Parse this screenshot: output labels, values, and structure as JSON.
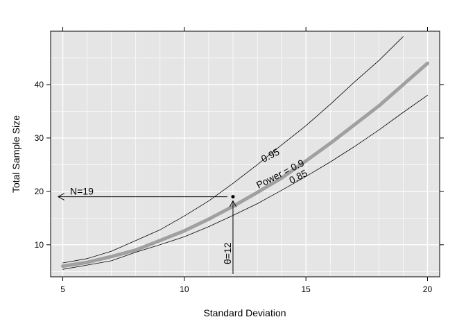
{
  "chart_data": {
    "type": "line",
    "xlabel": "Standard Deviation",
    "ylabel": "Total Sample Size",
    "xlim": [
      4.5,
      20.5
    ],
    "ylim": [
      4,
      50
    ],
    "x_ticks": [
      5,
      10,
      15,
      20
    ],
    "y_ticks": [
      10,
      20,
      30,
      40
    ],
    "grid": true,
    "colors": {
      "panel": "#e5e5e5",
      "grid": "#ffffff",
      "main_curve": "#a0a0a0",
      "other_curves": "#000000"
    },
    "series": [
      {
        "name": "0.95",
        "x": [
          5,
          6,
          7,
          8,
          9,
          10,
          11,
          12,
          13,
          14,
          15,
          16,
          17,
          18,
          19
        ],
        "y": [
          6.6,
          7.4,
          8.8,
          10.8,
          12.8,
          15.4,
          18.2,
          21.5,
          25,
          28.7,
          32.3,
          36.3,
          40.5,
          44.5,
          49
        ]
      },
      {
        "name": "Power = 0.9",
        "x": [
          5,
          6,
          7,
          8,
          9,
          10,
          11,
          12,
          13,
          14,
          15,
          16,
          17,
          18,
          19,
          20
        ],
        "y": [
          6,
          6.7,
          7.8,
          9,
          10.8,
          12.6,
          14.8,
          17.2,
          19.8,
          22.5,
          25.7,
          29,
          32.5,
          36,
          40,
          44
        ]
      },
      {
        "name": "0.85",
        "x": [
          5,
          6,
          7,
          8,
          9,
          10,
          11,
          12,
          13,
          14,
          15,
          16,
          17,
          18,
          19,
          20
        ],
        "y": [
          5.4,
          6.2,
          7,
          8.6,
          10,
          11.5,
          13.4,
          15.5,
          17.7,
          20.2,
          22.8,
          25.5,
          28.4,
          31.5,
          34.8,
          38
        ]
      }
    ],
    "point": {
      "x": 12,
      "y": 19
    },
    "annotations": {
      "n_label": "N=19",
      "theta_label": "θ=12",
      "label_095": "0.95",
      "label_power": "Power = 0.9",
      "label_085": "0.85"
    }
  }
}
